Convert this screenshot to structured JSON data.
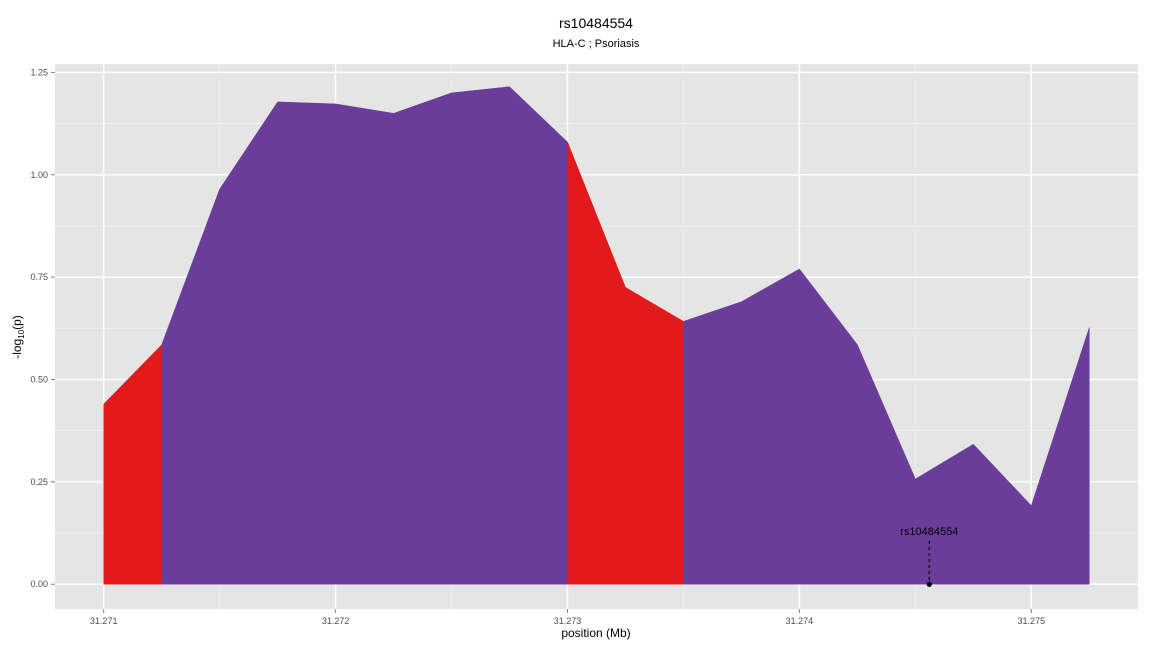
{
  "chart_data": {
    "type": "area",
    "title": "rs10484554",
    "subtitle": "HLA-C ; Psoriasis",
    "xlabel": "position (Mb)",
    "ylabel": "-log10(p)",
    "ylabel_parts": {
      "pre": "-log",
      "sub": "10",
      "post": "(p)"
    },
    "xlim": [
      31.27079,
      31.27546
    ],
    "ylim": [
      -0.0605,
      1.2705
    ],
    "x_ticks": [
      {
        "value": 31.271,
        "label": "31.271"
      },
      {
        "value": 31.272,
        "label": "31.272"
      },
      {
        "value": 31.273,
        "label": "31.273"
      },
      {
        "value": 31.274,
        "label": "31.274"
      },
      {
        "value": 31.275,
        "label": "31.275"
      }
    ],
    "y_ticks": [
      {
        "value": 0.0,
        "label": "0.00"
      },
      {
        "value": 0.25,
        "label": "0.25"
      },
      {
        "value": 0.5,
        "label": "0.50"
      },
      {
        "value": 0.75,
        "label": "0.75"
      },
      {
        "value": 1.0,
        "label": "1.00"
      },
      {
        "value": 1.25,
        "label": "1.25"
      }
    ],
    "x": [
      31.271,
      31.27125,
      31.2715,
      31.27175,
      31.272,
      31.27225,
      31.2725,
      31.27275,
      31.273,
      31.27325,
      31.2735,
      31.27375,
      31.274,
      31.27425,
      31.2745,
      31.27475,
      31.275,
      31.27525
    ],
    "y": [
      0.44,
      0.585,
      0.965,
      1.178,
      1.173,
      1.15,
      1.2,
      1.215,
      1.08,
      0.725,
      0.642,
      0.69,
      0.77,
      0.585,
      0.257,
      0.342,
      0.192,
      0.627
    ],
    "segments": [
      {
        "from": 0,
        "to": 1,
        "color": "#e31a1c"
      },
      {
        "from": 1,
        "to": 8,
        "color": "#6a3d9a"
      },
      {
        "from": 8,
        "to": 10,
        "color": "#e31a1c"
      },
      {
        "from": 10,
        "to": 17,
        "color": "#6a3d9a"
      }
    ],
    "annotation": {
      "label": "rs10484554",
      "x": 31.27456,
      "y": 0.0,
      "label_y": 0.13
    },
    "grid": true,
    "panel_color": "#e5e5e5"
  }
}
